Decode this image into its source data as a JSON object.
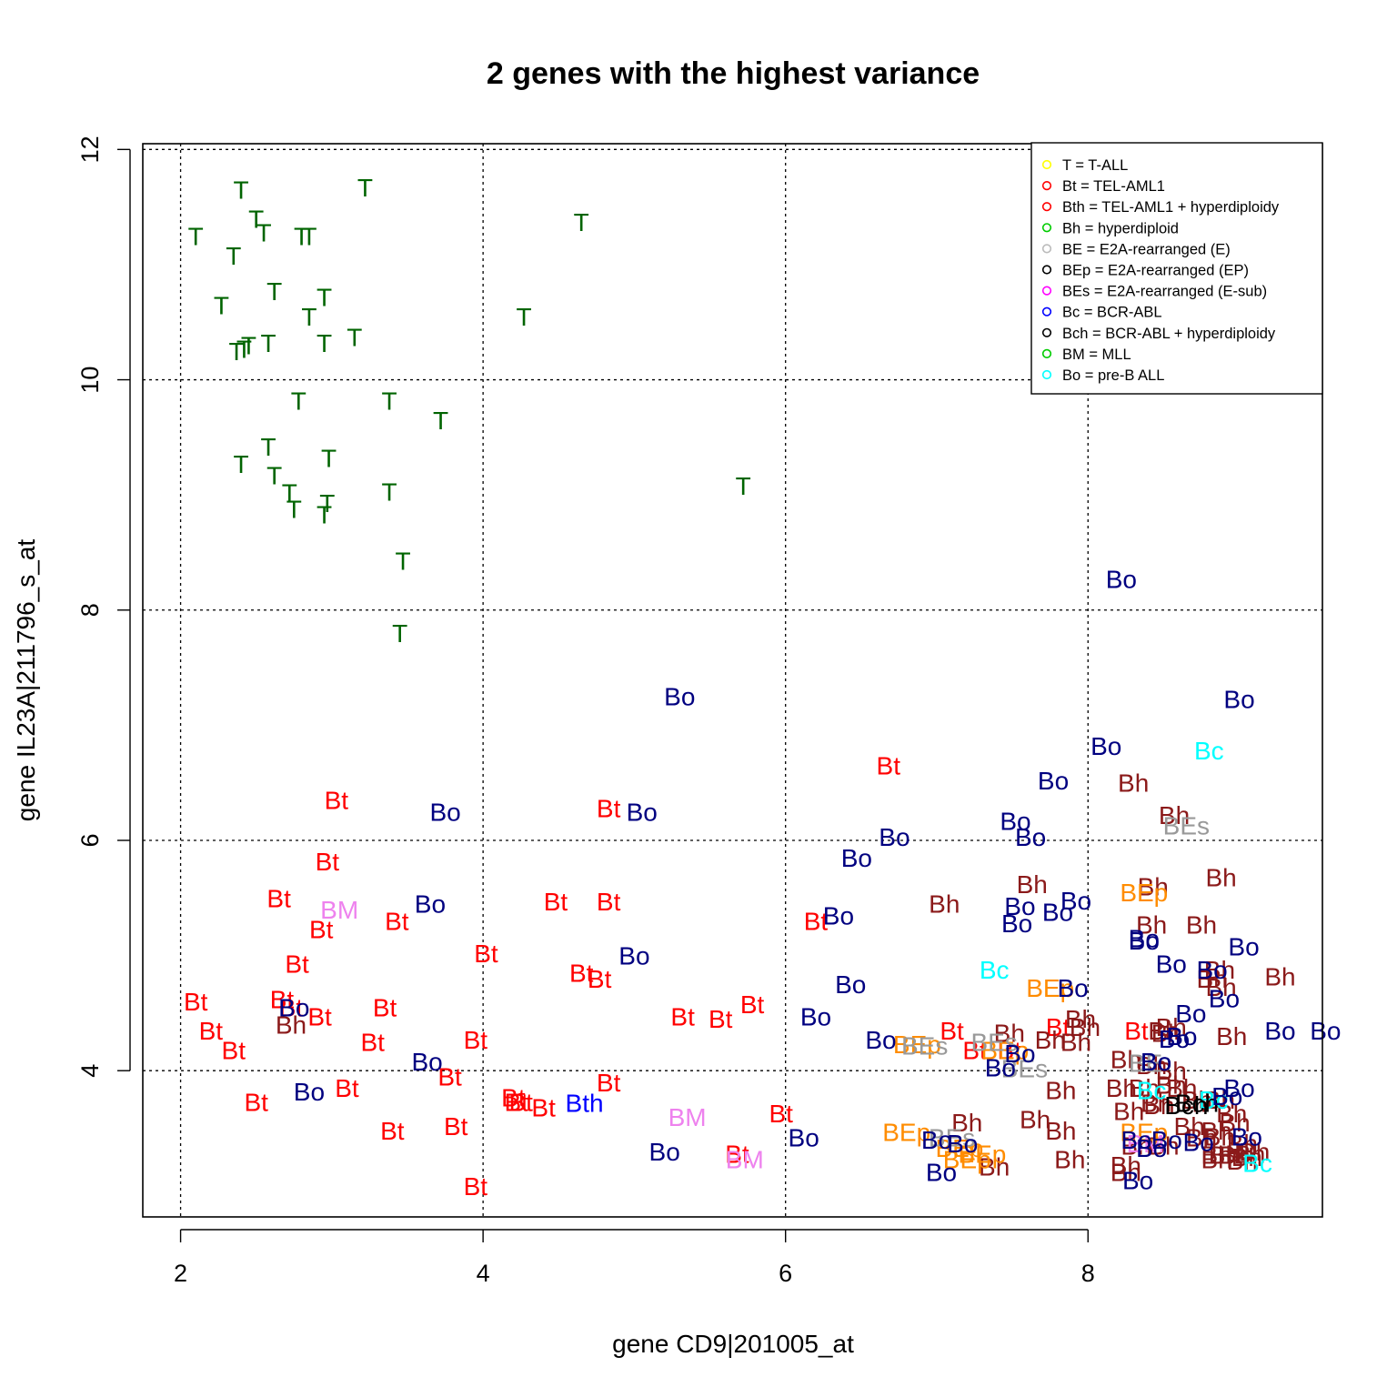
{
  "chart_data": {
    "type": "scatter",
    "title": "2 genes with the highest variance",
    "xlabel": "gene CD9|201005_at",
    "ylabel": "gene IL23A|211796_s_at",
    "xlim": [
      1.75,
      9.55
    ],
    "ylim": [
      2.73,
      12.05
    ],
    "xticks": [
      2,
      4,
      6,
      8
    ],
    "yticks": [
      4,
      6,
      8,
      10,
      12
    ],
    "grid": true,
    "legend_position": "top-right",
    "colors": {
      "T": "#006400",
      "Bt": "#ff0000",
      "Bth": "#0000ff",
      "Bh": "#8b1a1a",
      "BE": "#999999",
      "BEp": "#ff8c00",
      "BEs": "#999999",
      "Bc": "#00ffff",
      "Bch": "#000000",
      "BM": "#ee82ee",
      "Bo": "#000080"
    },
    "legend": [
      {
        "symbol": "T",
        "text": "T = T-ALL",
        "color": "#ffff00"
      },
      {
        "symbol": "Bt",
        "text": "Bt = TEL-AML1",
        "color": "#ff0000"
      },
      {
        "symbol": "Bth",
        "text": "Bth = TEL-AML1 + hyperdiploidy",
        "color": "#ff0000"
      },
      {
        "symbol": "Bh",
        "text": "Bh = hyperdiploid",
        "color": "#00cc00"
      },
      {
        "symbol": "BE",
        "text": "BE = E2A-rearranged (E)",
        "color": "#bbbbbb"
      },
      {
        "symbol": "BEp",
        "text": "BEp = E2A-rearranged (EP)",
        "color": "#000000"
      },
      {
        "symbol": "BEs",
        "text": "BEs = E2A-rearranged (E-sub)",
        "color": "#ff00ff"
      },
      {
        "symbol": "Bc",
        "text": "Bc = BCR-ABL",
        "color": "#0000ff"
      },
      {
        "symbol": "Bch",
        "text": "Bch = BCR-ABL + hyperdiploidy",
        "color": "#000000"
      },
      {
        "symbol": "BM",
        "text": "BM = MLL",
        "color": "#00cc00"
      },
      {
        "symbol": "Bo",
        "text": "Bo = pre-B ALL",
        "color": "#00ffff"
      }
    ],
    "series": [
      {
        "label": "T",
        "x": [
          2.1,
          2.4,
          2.5,
          2.55,
          2.8,
          2.85,
          3.22,
          4.65,
          2.35,
          2.27,
          2.62,
          2.85,
          2.95,
          2.45,
          2.58,
          2.95,
          3.15,
          2.37,
          2.42,
          4.27,
          2.78,
          3.38,
          3.72,
          2.58,
          2.4,
          2.62,
          2.98,
          2.72,
          2.97,
          3.38,
          2.75,
          2.95,
          5.72,
          3.47,
          3.45
        ],
        "y": [
          11.25,
          11.65,
          11.4,
          11.28,
          11.25,
          11.25,
          11.67,
          11.37,
          11.08,
          10.65,
          10.77,
          10.55,
          10.72,
          10.3,
          10.32,
          10.32,
          10.37,
          10.25,
          10.27,
          10.55,
          9.82,
          9.82,
          9.65,
          9.42,
          9.27,
          9.17,
          9.32,
          9.02,
          8.93,
          9.03,
          8.88,
          8.83,
          9.08,
          8.43,
          7.8
        ]
      },
      {
        "label": "Bt",
        "x": [
          3.03,
          2.97,
          2.65,
          2.93,
          3.43,
          2.77,
          2.1,
          2.67,
          2.73,
          2.92,
          2.2,
          2.35,
          2.5,
          3.1,
          3.35,
          3.27,
          3.4,
          3.78,
          4.02,
          4.48,
          4.83,
          4.65,
          4.77,
          4.83,
          3.95,
          4.25,
          4.4,
          4.83,
          3.82,
          4.2,
          4.22,
          3.95,
          5.32,
          5.57,
          5.78,
          5.68,
          5.97,
          6.68,
          6.2,
          7.1,
          7.25,
          7.8,
          8.32,
          7.48
        ],
        "y": [
          6.35,
          5.82,
          5.5,
          5.23,
          5.3,
          4.93,
          4.6,
          4.62,
          4.55,
          4.47,
          4.35,
          4.18,
          3.73,
          3.85,
          4.55,
          4.25,
          3.48,
          3.95,
          5.02,
          5.47,
          6.28,
          4.85,
          4.8,
          5.47,
          4.27,
          3.73,
          3.68,
          3.9,
          3.52,
          3.77,
          3.73,
          3.0,
          4.47,
          4.45,
          4.58,
          3.28,
          3.63,
          6.65,
          5.3,
          4.35,
          4.18,
          4.38,
          4.35,
          4.18
        ]
      },
      {
        "label": "Bth",
        "x": [
          4.67
        ],
        "y": [
          3.72
        ]
      },
      {
        "label": "Bh",
        "x": [
          2.73,
          7.05,
          7.63,
          7.48,
          7.75,
          7.92,
          7.95,
          8.3,
          8.43,
          8.42,
          8.5,
          8.75,
          8.88,
          8.57,
          8.82,
          8.88,
          8.87,
          9.27,
          8.95,
          8.55,
          8.42,
          8.37,
          8.62,
          8.52,
          7.98,
          8.25,
          8.47,
          8.55,
          8.68,
          8.72,
          8.87,
          8.85,
          7.82,
          8.22,
          8.32,
          8.45,
          8.85,
          9.02,
          9.05,
          8.9,
          8.67,
          8.75,
          8.85,
          8.27,
          7.82,
          7.88,
          8.25,
          8.25,
          8.55,
          8.97,
          8.87,
          8.95,
          9.1,
          9.07,
          8.97,
          9.02,
          8.5,
          7.65,
          7.2,
          7.38
        ],
        "y": [
          4.4,
          5.45,
          5.62,
          4.33,
          4.27,
          4.25,
          4.45,
          6.5,
          5.6,
          5.27,
          4.35,
          5.27,
          5.68,
          6.22,
          4.8,
          4.73,
          4.88,
          4.82,
          4.3,
          4.0,
          4.05,
          3.85,
          3.85,
          4.33,
          4.38,
          4.1,
          3.7,
          3.88,
          3.72,
          3.75,
          3.43,
          3.48,
          3.83,
          3.85,
          3.35,
          3.72,
          3.27,
          3.37,
          3.25,
          3.27,
          3.52,
          3.42,
          3.23,
          3.65,
          3.48,
          3.23,
          3.12,
          3.18,
          4.38,
          3.55,
          3.75,
          3.63,
          3.3,
          3.28,
          3.27,
          3.22,
          3.35,
          3.58,
          3.55,
          3.17
        ]
      },
      {
        "label": "BEp",
        "x": [
          8.37,
          6.87,
          7.75,
          7.45,
          8.37,
          6.8,
          7.15,
          7.3,
          7.2
        ],
        "y": [
          5.55,
          4.23,
          4.72,
          4.18,
          3.47,
          3.47,
          3.33,
          3.28,
          3.23
        ]
      },
      {
        "label": "BEs",
        "x": [
          8.65,
          6.92,
          7.38,
          7.58,
          7.1
        ],
        "y": [
          6.13,
          4.22,
          4.25,
          4.02,
          3.42
        ]
      },
      {
        "label": "BE",
        "x": [
          8.38
        ],
        "y": [
          4.07
        ]
      },
      {
        "label": "Bc",
        "x": [
          8.8,
          7.38,
          8.83,
          8.42,
          9.12
        ],
        "y": [
          6.78,
          4.88,
          3.75,
          3.83,
          3.2
        ]
      },
      {
        "label": "Bch",
        "x": [
          8.65,
          8.72
        ],
        "y": [
          3.7,
          3.72
        ]
      },
      {
        "label": "BM",
        "x": [
          3.05,
          5.35,
          5.73,
          8.38
        ],
        "y": [
          5.4,
          3.6,
          3.23,
          3.37
        ]
      },
      {
        "label": "Bo",
        "x": [
          8.22,
          5.3,
          9.0,
          8.12,
          7.77,
          7.52,
          7.62,
          6.72,
          6.47,
          3.75,
          5.05,
          3.65,
          6.35,
          7.55,
          7.53,
          7.92,
          7.8,
          8.37,
          8.37,
          8.55,
          8.82,
          9.03,
          8.9,
          9.27,
          8.68,
          8.57,
          9.57,
          6.63,
          6.2,
          5.0,
          6.43,
          8.62,
          7.42,
          7.55,
          7.9,
          8.45,
          8.45,
          3.63,
          2.75,
          2.85,
          7.0,
          8.32,
          9.05,
          9.0,
          5.2,
          6.12,
          7.17,
          8.52,
          8.73,
          8.92,
          7.03,
          8.42,
          8.33
        ],
        "y": [
          8.27,
          7.25,
          7.23,
          6.82,
          6.52,
          6.17,
          6.03,
          6.03,
          5.85,
          6.25,
          6.25,
          5.45,
          5.35,
          5.43,
          5.28,
          5.48,
          5.38,
          5.15,
          5.13,
          4.93,
          4.88,
          5.08,
          4.63,
          4.35,
          4.5,
          4.28,
          4.35,
          4.27,
          4.47,
          5.0,
          4.75,
          4.3,
          4.03,
          4.15,
          4.72,
          4.08,
          4.08,
          4.08,
          4.55,
          3.82,
          3.4,
          3.4,
          3.43,
          3.85,
          3.3,
          3.42,
          3.37,
          3.4,
          3.38,
          3.78,
          3.12,
          3.33,
          3.05
        ]
      }
    ]
  }
}
